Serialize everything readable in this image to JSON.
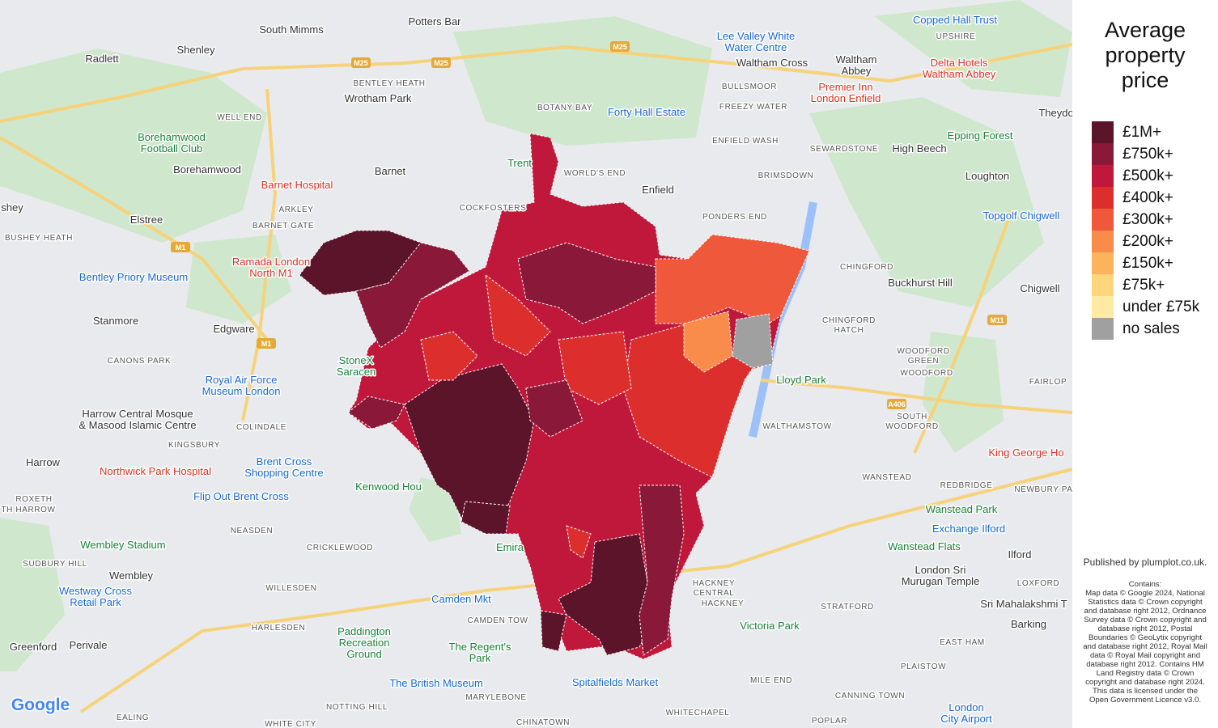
{
  "legend": {
    "title": "Average property price",
    "items": [
      {
        "label": "£1M+",
        "color": "#5b1429"
      },
      {
        "label": "£750k+",
        "color": "#8a1838"
      },
      {
        "label": "£500k+",
        "color": "#c0183a"
      },
      {
        "label": "£400k+",
        "color": "#dd2e2e"
      },
      {
        "label": "£300k+",
        "color": "#f0583b"
      },
      {
        "label": "£200k+",
        "color": "#f98c4b"
      },
      {
        "label": "£150k+",
        "color": "#fbb35c"
      },
      {
        "label": "£75k+",
        "color": "#fdd57b"
      },
      {
        "label": "under £75k",
        "color": "#feeaa2"
      },
      {
        "label": "no sales",
        "color": "#a0a0a0"
      }
    ]
  },
  "published": "Published by plumplot.co.uk.",
  "attribution": [
    "Contains:",
    "Map data © Google 2024, National",
    "Statistics data © Crown copyright",
    "and database right 2012, Ordnance",
    "Survey data © Crown copyright and",
    "database right 2012, Postal",
    "Boundaries © GeoLytix copyright",
    "and database right 2012, Royal Mail",
    "data © Royal Mail copyright and",
    "database right 2012. Contains HM",
    "Land Registry data © Crown",
    "copyright and database right 2024.",
    "This data is licensed under the",
    "Open Government Licence v3.0."
  ],
  "map_labels": [
    [
      "Potters Bar"
    ],
    [
      "South Mimms"
    ],
    [
      "Radlett"
    ],
    [
      "Shenley"
    ],
    [
      "Waltham Cross"
    ],
    [
      "Waltham",
      "Abbey"
    ],
    [
      "Copped Hall Trust"
    ],
    [
      "UPSHIRE"
    ],
    [
      "Lee Valley White",
      "Water Centre"
    ],
    [
      "Delta Hotels",
      "Waltham Abbey"
    ],
    [
      "Premier Inn",
      "London Enfield"
    ],
    [
      "Wrotham Park"
    ],
    [
      "BENTLEY HEATH"
    ],
    [
      "BULLSMOOR"
    ],
    [
      "FREEZY WATER"
    ],
    [
      "BOTANY BAY"
    ],
    [
      "Forty Hall Estate"
    ],
    [
      "Theydo"
    ],
    [
      "WELL END"
    ],
    [
      "Borehamwood",
      "Football Club"
    ],
    [
      "Epping Forest"
    ],
    [
      "ENFIELD WASH"
    ],
    [
      "SEWARDSTONE"
    ],
    [
      "High Beech"
    ],
    [
      "Barnet"
    ],
    [
      "Borehamwood"
    ],
    [
      "WORLD'S END"
    ],
    [
      "Trent"
    ],
    [
      "BRIMSDOWN"
    ],
    [
      "Loughton"
    ],
    [
      "Barnet Hospital"
    ],
    [
      "Enfield"
    ],
    [
      "COCKFOSTERS"
    ],
    [
      "shey"
    ],
    [
      "ARKLEY"
    ],
    [
      "Elstree"
    ],
    [
      "PONDERS END"
    ],
    [
      "Topgolf Chigwell"
    ],
    [
      "BARNET GATE"
    ],
    [
      "BUSHEY HEATH"
    ],
    [
      "CHINGFORD"
    ],
    [
      "Ramada London",
      "North M1"
    ],
    [
      "Bentley Priory Museum"
    ],
    [
      "Buckhurst Hill"
    ],
    [
      "Chigwell"
    ],
    [
      "Stanmore"
    ],
    [
      "Edgware"
    ],
    [
      "CHINGFORD",
      "HATCH"
    ],
    [
      "CANONS PARK"
    ],
    [
      "WOODFORD",
      "GREEN"
    ],
    [
      "WOODFORD"
    ],
    [
      "Royal Air Force",
      "Museum London"
    ],
    [
      "StoneX",
      "Saracen"
    ],
    [
      "Lloyd Park"
    ],
    [
      "FAIRLOP"
    ],
    [
      "Harrow Central Mosque",
      "& Masood Islamic Centre"
    ],
    [
      "COLINDALE"
    ],
    [
      "WALTHAMSTOW"
    ],
    [
      "SOUTH",
      "WOODFORD"
    ],
    [
      "KINGSBURY"
    ],
    [
      "Harrow"
    ],
    [
      "Northwick Park Hospital"
    ],
    [
      "Brent Cross",
      "Shopping Centre"
    ],
    [
      "Kenwood Hou"
    ],
    [
      "WANSTEAD"
    ],
    [
      "King George Ho"
    ],
    [
      "Flip Out Brent Cross"
    ],
    [
      "ROXETH"
    ],
    [
      "REDBRIDGE"
    ],
    [
      "NEWBURY PARK"
    ],
    [
      "Wanstead Park"
    ],
    [
      "TH HARROW"
    ],
    [
      "NEASDEN"
    ],
    [
      "Exchange Ilford"
    ],
    [
      "Wembley Stadium"
    ],
    [
      "CRICKLEWOOD"
    ],
    [
      "Wanstead Flats"
    ],
    [
      "Ilford"
    ],
    [
      "SUDBURY HILL"
    ],
    [
      "Wembley"
    ],
    [
      "London Sri",
      "Murugan Temple"
    ],
    [
      "WILLESDEN"
    ],
    [
      "HACKNEY",
      "CENTRAL"
    ],
    [
      "HACKNEY"
    ],
    [
      "STRATFORD"
    ],
    [
      "LOXFORD"
    ],
    [
      "Westway Cross",
      "Retail Park"
    ],
    [
      "Camden Mkt"
    ],
    [
      "Sri Mahalakshmi T"
    ],
    [
      "HARLESDEN"
    ],
    [
      "CAMDEN TOW"
    ],
    [
      "Victoria Park"
    ],
    [
      "Barking"
    ],
    [
      "Paddington",
      "Recreation",
      "Ground"
    ],
    [
      "The Regent's",
      "Park"
    ],
    [
      "Greenford"
    ],
    [
      "Perivale"
    ],
    [
      "EAST HAM"
    ],
    [
      "Spitalfields Market"
    ],
    [
      "MILE END"
    ],
    [
      "PLAISTOW"
    ],
    [
      "MARYLEBONE"
    ],
    [
      "CANNING TOWN"
    ],
    [
      "NOTTING HILL"
    ],
    [
      "EALING"
    ],
    [
      "WHITECHAPEL"
    ],
    [
      "POPLAR"
    ],
    [
      "London",
      "City Airport"
    ],
    [
      "CHINATOWN"
    ],
    [
      "WHITE CITY"
    ],
    [
      "The British Museum"
    ],
    [
      "Emira"
    ],
    [
      "M25"
    ],
    [
      "M25"
    ],
    [
      "M25"
    ],
    [
      "M1"
    ],
    [
      "M1"
    ],
    [
      "A406"
    ],
    [
      "M11"
    ],
    [
      "Google"
    ]
  ]
}
